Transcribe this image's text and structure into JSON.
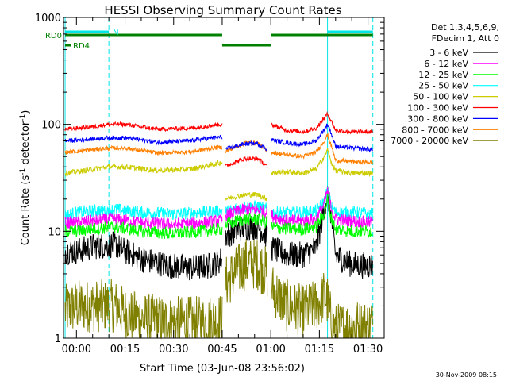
{
  "chart_data": {
    "type": "line",
    "title": "HESSI Observing Summary Count Rates",
    "xlabel": "Start Time (03-Jun-08 23:56:02)",
    "ylabel_main": "Count Rate (s",
    "ylabel_sup1": "-1",
    "ylabel_mid": " detector",
    "ylabel_sup2": "-1",
    "ylabel_end": ")",
    "y_scale": "log",
    "ylim": [
      1,
      1000
    ],
    "xlim_minutes": [
      -4,
      95
    ],
    "x_ticks": [
      {
        "label": "00:00",
        "min": 0
      },
      {
        "label": "00:15",
        "min": 15
      },
      {
        "label": "00:30",
        "min": 30
      },
      {
        "label": "00:45",
        "min": 45
      },
      {
        "label": "01:00",
        "min": 60
      },
      {
        "label": "01:15",
        "min": 75
      },
      {
        "label": "01:30",
        "min": 90
      }
    ],
    "y_ticks": [
      {
        "label": "1",
        "value": 1
      },
      {
        "label": "10",
        "value": 10
      },
      {
        "label": "100",
        "value": 100
      },
      {
        "label": "1000",
        "value": 1000
      }
    ],
    "legend_position": "right",
    "legend_header": [
      "Det 1,3,4,5,6,9,",
      "FDecim 1, Att 0"
    ],
    "vlines": [
      {
        "min": -3.5,
        "style": "solid"
      },
      {
        "min": 10,
        "style": "dashed"
      },
      {
        "min": 77.5,
        "style": "solid"
      },
      {
        "min": 91.5,
        "style": "dashed"
      }
    ],
    "flags": [
      {
        "label": "RD0",
        "color": "#008000",
        "segments": [
          [
            -3.5,
            45
          ],
          [
            60,
            91.5
          ]
        ]
      },
      {
        "label": "RD4",
        "color": "#008000",
        "segments": [
          [
            45,
            60
          ]
        ]
      },
      {
        "label": "N",
        "color": "#00e5e5",
        "segments": [
          [
            -3.5,
            10
          ],
          [
            77.5,
            91.5
          ]
        ]
      }
    ],
    "gaps": [
      [
        45,
        46
      ],
      [
        59,
        60
      ]
    ],
    "series": [
      {
        "name": "3 - 6 keV",
        "color": "#000000",
        "noise": 0.25,
        "points": [
          [
            -3.5,
            6.5
          ],
          [
            0,
            6.5
          ],
          [
            5,
            7.2
          ],
          [
            12,
            7.5
          ],
          [
            15,
            6.5
          ],
          [
            20,
            5.5
          ],
          [
            28,
            4.8
          ],
          [
            35,
            4.5
          ],
          [
            42,
            4.8
          ],
          [
            45,
            5.5
          ],
          [
            45.5,
            9
          ],
          [
            52,
            11
          ],
          [
            56,
            11
          ],
          [
            59,
            9
          ],
          [
            60,
            7
          ],
          [
            65,
            6
          ],
          [
            70,
            6
          ],
          [
            74,
            7
          ],
          [
            76.5,
            16
          ],
          [
            77.5,
            22
          ],
          [
            78.5,
            15
          ],
          [
            80,
            6
          ],
          [
            84,
            5
          ],
          [
            88,
            4.8
          ],
          [
            91.5,
            4.8
          ]
        ]
      },
      {
        "name": "6 - 12 keV",
        "color": "#ff00ff",
        "noise": 0.12,
        "points": [
          [
            -3.5,
            12
          ],
          [
            0,
            12
          ],
          [
            5,
            12.5
          ],
          [
            12,
            13
          ],
          [
            20,
            12
          ],
          [
            30,
            11.5
          ],
          [
            38,
            12
          ],
          [
            45,
            12.5
          ],
          [
            45.5,
            14
          ],
          [
            52,
            16
          ],
          [
            56,
            16
          ],
          [
            59,
            15
          ],
          [
            60,
            14
          ],
          [
            65,
            12.5
          ],
          [
            70,
            12.5
          ],
          [
            74,
            13
          ],
          [
            76.5,
            18
          ],
          [
            77.5,
            24
          ],
          [
            78.5,
            17
          ],
          [
            80,
            13
          ],
          [
            85,
            12.5
          ],
          [
            91.5,
            12
          ]
        ]
      },
      {
        "name": "12 - 25 keV",
        "color": "#00ff00",
        "noise": 0.12,
        "points": [
          [
            -3.5,
            10
          ],
          [
            0,
            10
          ],
          [
            5,
            10.5
          ],
          [
            12,
            11
          ],
          [
            20,
            10
          ],
          [
            30,
            9.5
          ],
          [
            38,
            10
          ],
          [
            45,
            10.5
          ],
          [
            45.5,
            11.5
          ],
          [
            52,
            13
          ],
          [
            56,
            13
          ],
          [
            59,
            12
          ],
          [
            60,
            11
          ],
          [
            65,
            10.5
          ],
          [
            70,
            10.5
          ],
          [
            74,
            11
          ],
          [
            76.5,
            15
          ],
          [
            77.5,
            20
          ],
          [
            78.5,
            14
          ],
          [
            80,
            10.5
          ],
          [
            85,
            10
          ],
          [
            91.5,
            10
          ]
        ]
      },
      {
        "name": "25 - 50 keV",
        "color": "#00ffff",
        "noise": 0.12,
        "points": [
          [
            -3.5,
            14
          ],
          [
            0,
            15
          ],
          [
            5,
            15.5
          ],
          [
            12,
            16
          ],
          [
            20,
            15
          ],
          [
            30,
            14.5
          ],
          [
            38,
            15
          ],
          [
            45,
            15.5
          ],
          [
            45.5,
            15
          ],
          [
            52,
            17
          ],
          [
            56,
            17
          ],
          [
            59,
            16
          ],
          [
            60,
            15
          ],
          [
            65,
            15
          ],
          [
            70,
            15
          ],
          [
            74,
            15.5
          ],
          [
            76.5,
            19
          ],
          [
            77.5,
            24
          ],
          [
            78.5,
            18
          ],
          [
            80,
            15
          ],
          [
            85,
            15
          ],
          [
            91.5,
            14.5
          ]
        ]
      },
      {
        "name": "50 - 100 keV",
        "color": "#cccc00",
        "noise": 0.05,
        "points": [
          [
            -3.5,
            35
          ],
          [
            0,
            36
          ],
          [
            5,
            38
          ],
          [
            10,
            40
          ],
          [
            15,
            40
          ],
          [
            25,
            37
          ],
          [
            35,
            38
          ],
          [
            42,
            42
          ],
          [
            45,
            44
          ],
          [
            45.5,
            20
          ],
          [
            52,
            22
          ],
          [
            56,
            22
          ],
          [
            59,
            20
          ],
          [
            60,
            35
          ],
          [
            65,
            36
          ],
          [
            70,
            35
          ],
          [
            74,
            38
          ],
          [
            76.5,
            50
          ],
          [
            77.5,
            58
          ],
          [
            78.5,
            45
          ],
          [
            80,
            37
          ],
          [
            85,
            35
          ],
          [
            91.5,
            35
          ]
        ]
      },
      {
        "name": "100 - 300 keV",
        "color": "#ff0000",
        "noise": 0.04,
        "points": [
          [
            -3.5,
            90
          ],
          [
            0,
            92
          ],
          [
            5,
            95
          ],
          [
            10,
            100
          ],
          [
            15,
            100
          ],
          [
            25,
            90
          ],
          [
            35,
            92
          ],
          [
            42,
            98
          ],
          [
            45,
            100
          ],
          [
            45.5,
            40
          ],
          [
            52,
            48
          ],
          [
            56,
            48
          ],
          [
            59,
            40
          ],
          [
            60,
            100
          ],
          [
            65,
            88
          ],
          [
            70,
            85
          ],
          [
            74,
            92
          ],
          [
            76.5,
            115
          ],
          [
            77.5,
            125
          ],
          [
            78.5,
            110
          ],
          [
            80,
            88
          ],
          [
            85,
            85
          ],
          [
            91.5,
            85
          ]
        ]
      },
      {
        "name": "300 - 800 keV",
        "color": "#0000ff",
        "noise": 0.04,
        "points": [
          [
            -3.5,
            70
          ],
          [
            0,
            71
          ],
          [
            5,
            73
          ],
          [
            10,
            75
          ],
          [
            15,
            75
          ],
          [
            25,
            68
          ],
          [
            35,
            70
          ],
          [
            42,
            75
          ],
          [
            45,
            76
          ],
          [
            45.5,
            58
          ],
          [
            52,
            66
          ],
          [
            56,
            66
          ],
          [
            59,
            58
          ],
          [
            60,
            72
          ],
          [
            65,
            67
          ],
          [
            70,
            65
          ],
          [
            74,
            70
          ],
          [
            76.5,
            90
          ],
          [
            77.5,
            100
          ],
          [
            78.5,
            85
          ],
          [
            80,
            62
          ],
          [
            85,
            60
          ],
          [
            91.5,
            58
          ]
        ]
      },
      {
        "name": "800 - 7000 keV",
        "color": "#ff8000",
        "noise": 0.04,
        "points": [
          [
            -3.5,
            55
          ],
          [
            0,
            56
          ],
          [
            5,
            58
          ],
          [
            10,
            60
          ],
          [
            15,
            60
          ],
          [
            25,
            54
          ],
          [
            35,
            55
          ],
          [
            42,
            60
          ],
          [
            45,
            61
          ],
          [
            45.5,
            55
          ],
          [
            52,
            67
          ],
          [
            56,
            67
          ],
          [
            59,
            55
          ],
          [
            60,
            55
          ],
          [
            65,
            52
          ],
          [
            70,
            50
          ],
          [
            74,
            55
          ],
          [
            76.5,
            70
          ],
          [
            77.5,
            80
          ],
          [
            78.5,
            65
          ],
          [
            80,
            46
          ],
          [
            85,
            45
          ],
          [
            91.5,
            44
          ]
        ]
      },
      {
        "name": "7000 - 20000 keV",
        "color": "#808000",
        "noise": 0.5,
        "points": [
          [
            -3.5,
            1.8
          ],
          [
            0,
            2
          ],
          [
            5,
            2
          ],
          [
            12,
            2
          ],
          [
            15,
            1.7
          ],
          [
            20,
            1.5
          ],
          [
            30,
            1.4
          ],
          [
            38,
            1.4
          ],
          [
            45,
            1.5
          ],
          [
            45.5,
            3.2
          ],
          [
            52,
            5
          ],
          [
            56,
            5
          ],
          [
            59,
            4
          ],
          [
            60,
            3
          ],
          [
            65,
            2
          ],
          [
            70,
            1.8
          ],
          [
            74,
            2
          ],
          [
            76.5,
            2.5
          ],
          [
            77.5,
            2.2
          ],
          [
            78.5,
            1.5
          ],
          [
            80,
            1.2
          ],
          [
            85,
            1.3
          ],
          [
            91.5,
            1.3
          ]
        ]
      }
    ],
    "footer": "30-Nov-2009 08:15"
  }
}
